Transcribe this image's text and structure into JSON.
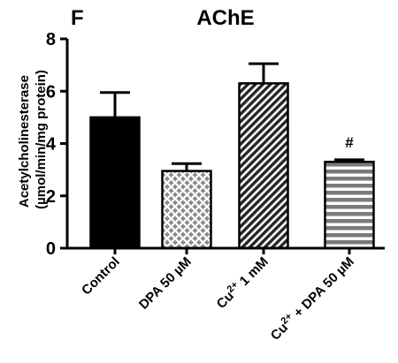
{
  "chart_data": {
    "type": "bar",
    "panel_label": "F",
    "title": "AChE",
    "ylabel_line1": "Acetylcholinesterase",
    "ylabel_line2": "(µmol/min/mg protein)",
    "ylim": [
      0,
      8
    ],
    "yticks": [
      "0",
      "2",
      "4",
      "6",
      "8"
    ],
    "categories": [
      {
        "base": "Control",
        "sup": "",
        "rest": ""
      },
      {
        "base": "DPA 50 µM",
        "sup": "",
        "rest": ""
      },
      {
        "base": "Cu",
        "sup": "2+",
        "rest": " 1 mM"
      },
      {
        "base": "Cu",
        "sup": "2+",
        "rest": " + DPA 50  µM"
      }
    ],
    "values": [
      5.0,
      2.95,
      6.3,
      3.3
    ],
    "errors": [
      0.95,
      0.28,
      0.75,
      0.08
    ],
    "fills": [
      "solid-black",
      "crosshatch-gray",
      "diagonal-dark",
      "horizontal-gray"
    ],
    "annotation": {
      "text": "#",
      "bar_index": 3
    }
  }
}
